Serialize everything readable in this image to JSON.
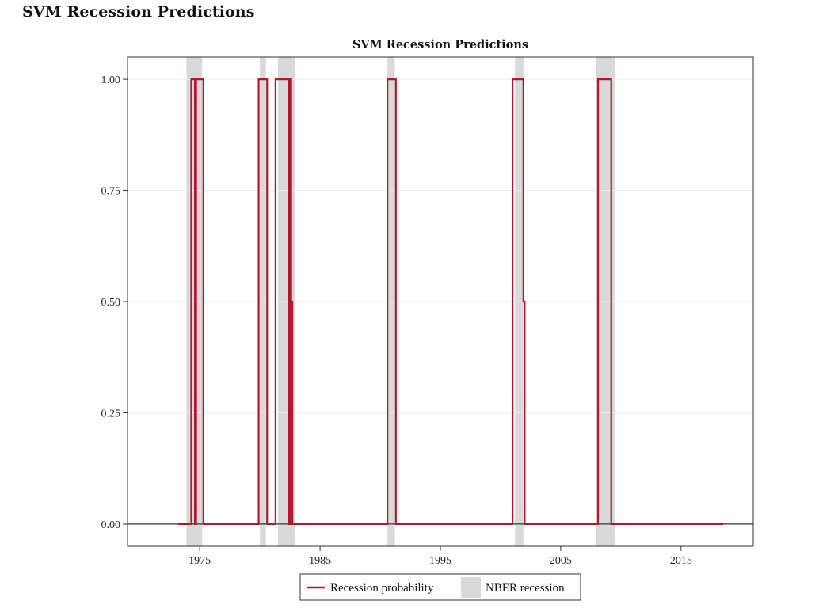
{
  "page": {
    "heading": "SVM Recession Predictions"
  },
  "colors": {
    "probability_line": "#b2182b",
    "recession_band": "#d9d9d9",
    "zero_line": "#333333"
  },
  "chart_data": {
    "type": "line",
    "title": "SVM Recession Predictions",
    "xlabel": "",
    "ylabel": "",
    "xlim": [
      1969.0,
      2021.0
    ],
    "ylim": [
      -0.05,
      1.05
    ],
    "x_ticks": [
      {
        "value": 1975,
        "label": "1975"
      },
      {
        "value": 1985,
        "label": "1985"
      },
      {
        "value": 1995,
        "label": "1995"
      },
      {
        "value": 2005,
        "label": "2005"
      },
      {
        "value": 2015,
        "label": "2015"
      }
    ],
    "y_ticks": [
      {
        "value": 0.0,
        "label": "0.00"
      },
      {
        "value": 0.25,
        "label": "0.25"
      },
      {
        "value": 0.5,
        "label": "0.50"
      },
      {
        "value": 0.75,
        "label": "0.75"
      },
      {
        "value": 1.0,
        "label": "1.00"
      }
    ],
    "grid": true,
    "legend_position": "bottom",
    "legend": [
      {
        "name": "Recession probability",
        "kind": "line"
      },
      {
        "name": "NBER recession",
        "kind": "band"
      }
    ],
    "recessions": [
      {
        "start": 1973.9,
        "end": 1975.2
      },
      {
        "start": 1980.0,
        "end": 1980.5
      },
      {
        "start": 1981.5,
        "end": 1982.9
      },
      {
        "start": 1990.6,
        "end": 1991.2
      },
      {
        "start": 2001.2,
        "end": 2001.9
      },
      {
        "start": 2007.9,
        "end": 2009.5
      }
    ],
    "series": [
      {
        "name": "Recession probability",
        "step": true,
        "points": [
          [
            1973.2,
            0
          ],
          [
            1974.3,
            1
          ],
          [
            1974.6,
            0
          ],
          [
            1974.7,
            1
          ],
          [
            1975.3,
            0
          ],
          [
            1979.9,
            1
          ],
          [
            1980.6,
            0
          ],
          [
            1981.3,
            1
          ],
          [
            1982.4,
            0
          ],
          [
            1982.5,
            1
          ],
          [
            1982.6,
            0.5
          ],
          [
            1982.7,
            0
          ],
          [
            1990.6,
            1
          ],
          [
            1991.3,
            0
          ],
          [
            2001.0,
            1
          ],
          [
            2001.9,
            0.5
          ],
          [
            2002.0,
            0
          ],
          [
            2008.1,
            1
          ],
          [
            2009.2,
            0
          ],
          [
            2018.5,
            0
          ]
        ]
      }
    ]
  }
}
